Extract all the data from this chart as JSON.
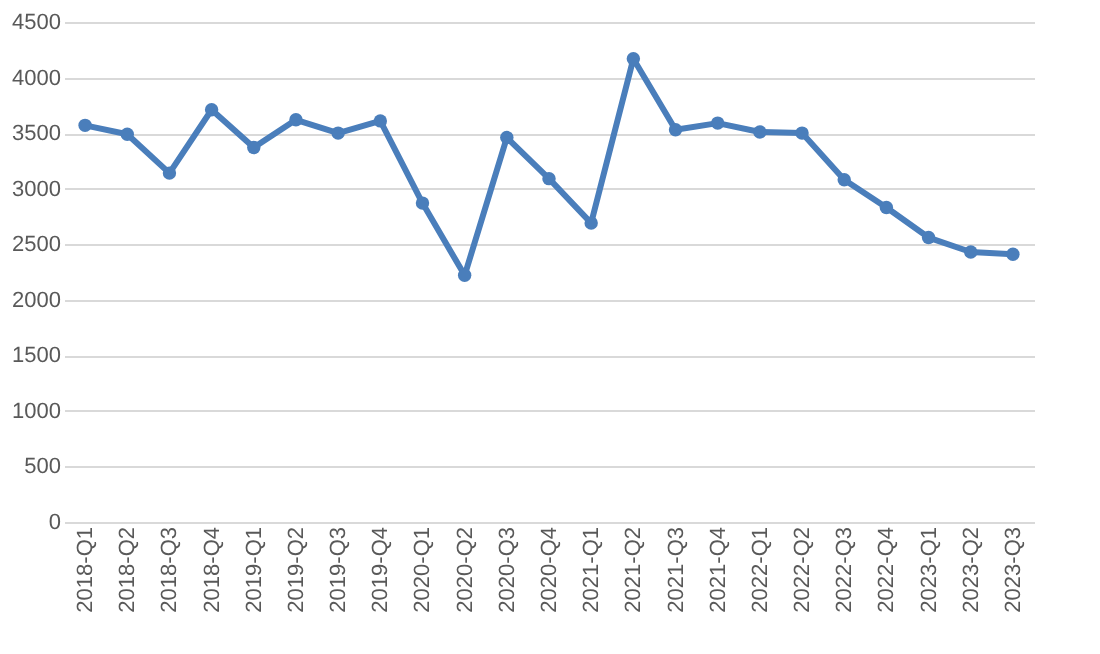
{
  "chart_data": {
    "type": "line",
    "categories": [
      "2018-Q1",
      "2018-Q2",
      "2018-Q3",
      "2018-Q4",
      "2019-Q1",
      "2019-Q2",
      "2019-Q3",
      "2019-Q4",
      "2020-Q1",
      "2020-Q2",
      "2020-Q3",
      "2020-Q4",
      "2021-Q1",
      "2021-Q2",
      "2021-Q3",
      "2021-Q4",
      "2022-Q1",
      "2022-Q2",
      "2022-Q3",
      "2022-Q4",
      "2023-Q1",
      "2023-Q2",
      "2023-Q3"
    ],
    "series": [
      {
        "color": "#4a7ebb",
        "values": [
          3570,
          3490,
          3140,
          3710,
          3370,
          3620,
          3500,
          3610,
          2870,
          2220,
          3460,
          3090,
          2690,
          4170,
          3530,
          3590,
          3510,
          3500,
          3080,
          2830,
          2560,
          2430,
          2410
        ]
      }
    ],
    "ylim": [
      0,
      4500
    ],
    "yticks": [
      0,
      500,
      1000,
      1500,
      2000,
      2500,
      3000,
      3500,
      4000,
      4500
    ],
    "grid": "y",
    "marker": "circle",
    "line_style": "solid"
  }
}
